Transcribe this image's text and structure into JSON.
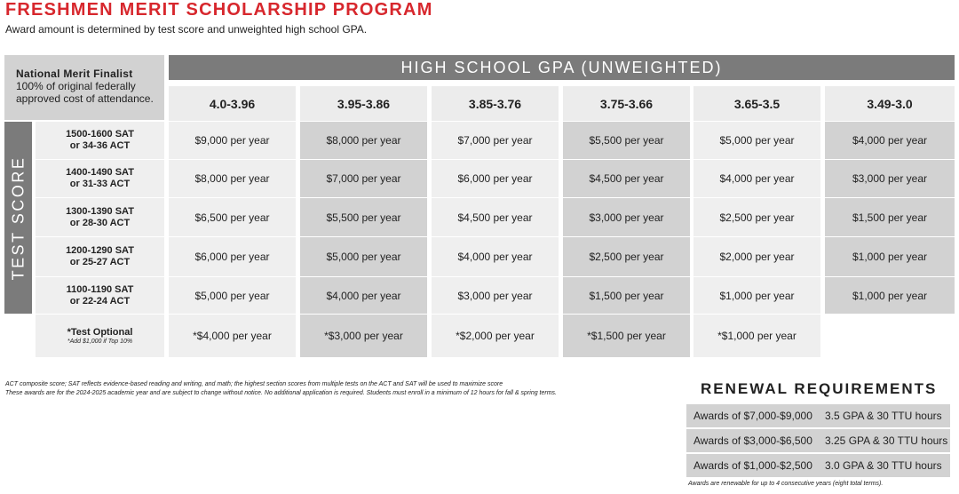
{
  "header": {
    "title": "FRESHMEN MERIT SCHOLARSHIP PROGRAM",
    "subtitle": "Award amount is determined by test score and unweighted high school GPA."
  },
  "national_merit": {
    "title": "National Merit Finalist",
    "text": "100% of original federally approved cost of attendance."
  },
  "table": {
    "gpa_heading": "HIGH SCHOOL GPA (UNWEIGHTED)",
    "test_score_heading": "TEST SCORE",
    "columns": [
      "4.0-3.96",
      "3.95-3.86",
      "3.85-3.76",
      "3.75-3.66",
      "3.65-3.5",
      "3.49-3.0"
    ],
    "rows": [
      {
        "label": [
          "1500-1600 SAT",
          "or 34-36 ACT"
        ],
        "cells": [
          "$9,000 per year",
          "$8,000 per year",
          "$7,000 per year",
          "$5,500 per year",
          "$5,000 per year",
          "$4,000 per year"
        ]
      },
      {
        "label": [
          "1400-1490 SAT",
          "or 31-33 ACT"
        ],
        "cells": [
          "$8,000 per year",
          "$7,000 per year",
          "$6,000 per year",
          "$4,500 per year",
          "$4,000 per year",
          "$3,000 per year"
        ]
      },
      {
        "label": [
          "1300-1390 SAT",
          "or 28-30 ACT"
        ],
        "cells": [
          "$6,500 per year",
          "$5,500 per year",
          "$4,500 per year",
          "$3,000 per year",
          "$2,500 per year",
          "$1,500 per year"
        ]
      },
      {
        "label": [
          "1200-1290 SAT",
          "or 25-27 ACT"
        ],
        "cells": [
          "$6,000 per year",
          "$5,000 per year",
          "$4,000 per year",
          "$2,500 per year",
          "$2,000 per year",
          "$1,000 per year"
        ]
      },
      {
        "label": [
          "1100-1190 SAT",
          "or 22-24 ACT"
        ],
        "cells": [
          "$5,000 per year",
          "$4,000 per year",
          "$3,000 per year",
          "$1,500 per year",
          "$1,000 per year",
          "$1,000 per year"
        ]
      },
      {
        "label": [
          "*Test Optional"
        ],
        "note": "*Add $1,000 if Top 10%",
        "cells": [
          "*$4,000 per year",
          "*$3,000 per year",
          "*$2,000 per year",
          "*$1,500 per year",
          "*$1,000 per year"
        ]
      }
    ]
  },
  "footnotes": [
    "ACT composite score; SAT reflects evidence-based reading and writing, and math; the highest section scores from multiple tests on the ACT and SAT will be used to maximize score",
    "These awards are for the 2024-2025 academic year and are subject to change without notice. No additional application is required. Students must enroll in a minimum of 12 hours for fall & spring terms."
  ],
  "renewal": {
    "title": "RENEWAL REQUIREMENTS",
    "rows": [
      [
        "Awards of $7,000-$9,000",
        "3.5 GPA & 30 TTU hours"
      ],
      [
        "Awards of $3,000-$6,500",
        "3.25 GPA & 30 TTU hours"
      ],
      [
        "Awards of $1,000-$2,500",
        "3.0 GPA & 30 TTU hours"
      ]
    ],
    "note": "Awards are renewable for up to 4 consecutive years (eight total terms)."
  }
}
